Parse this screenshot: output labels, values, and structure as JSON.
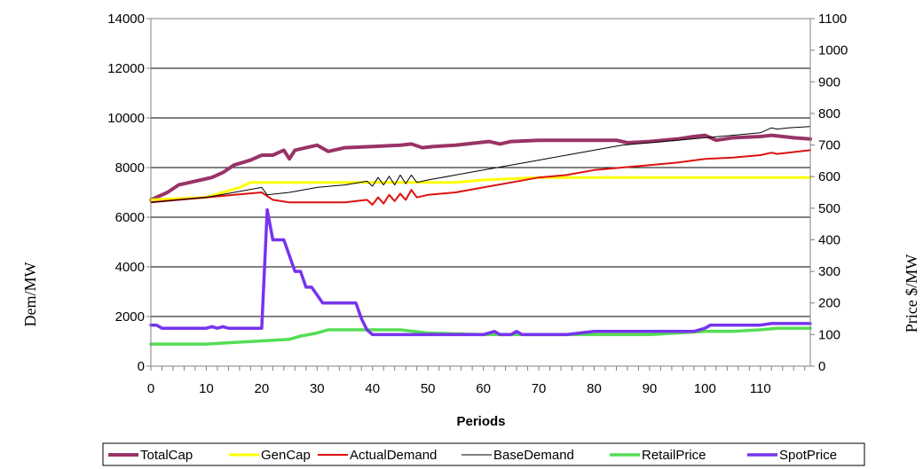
{
  "chart_data": {
    "type": "line",
    "xlabel": "Periods",
    "ylabel_left": "Dem/MW",
    "ylabel_right": "Price $/MW",
    "xlim": [
      0,
      119
    ],
    "ylim_left": [
      0,
      14000
    ],
    "ylim_right": [
      0,
      1100
    ],
    "x_ticks": [
      0,
      10,
      20,
      30,
      40,
      50,
      60,
      70,
      80,
      90,
      100,
      110
    ],
    "y_ticks_left": [
      0,
      2000,
      4000,
      6000,
      8000,
      10000,
      12000,
      14000
    ],
    "y_ticks_right": [
      0,
      100,
      200,
      300,
      400,
      500,
      600,
      700,
      800,
      900,
      1000,
      1100
    ],
    "grid": "horizontal",
    "legend_position": "bottom",
    "series": [
      {
        "name": "TotalCap",
        "axis": "left",
        "color": "#993366",
        "x": [
          0,
          3,
          5,
          7,
          9,
          11,
          13,
          15,
          18,
          20,
          22,
          24,
          25,
          26,
          28,
          30,
          32,
          35,
          40,
          45,
          47,
          49,
          51,
          55,
          59,
          61,
          63,
          65,
          70,
          75,
          80,
          84,
          86,
          90,
          95,
          98,
          100,
          102,
          105,
          110,
          112,
          116,
          119
        ],
        "y": [
          6700,
          7000,
          7300,
          7400,
          7500,
          7600,
          7800,
          8100,
          8300,
          8500,
          8500,
          8700,
          8350,
          8700,
          8800,
          8900,
          8650,
          8800,
          8850,
          8900,
          8950,
          8800,
          8850,
          8900,
          9000,
          9050,
          8950,
          9050,
          9100,
          9100,
          9100,
          9100,
          9000,
          9050,
          9150,
          9250,
          9300,
          9100,
          9200,
          9250,
          9300,
          9200,
          9150
        ]
      },
      {
        "name": "GenCap",
        "axis": "left",
        "color": "#ffff00",
        "x": [
          0,
          10,
          13,
          16,
          18,
          20,
          30,
          40,
          50,
          55,
          60,
          70,
          80,
          90,
          100,
          110,
          119
        ],
        "y": [
          6700,
          6800,
          7000,
          7200,
          7400,
          7400,
          7400,
          7400,
          7400,
          7400,
          7500,
          7600,
          7600,
          7600,
          7600,
          7600,
          7600
        ]
      },
      {
        "name": "ActualDemand",
        "axis": "left",
        "color": "#dd1111",
        "x": [
          0,
          5,
          10,
          15,
          20,
          22,
          25,
          30,
          35,
          39,
          40,
          41,
          42,
          43,
          44,
          45,
          46,
          47,
          48,
          49,
          50,
          55,
          60,
          65,
          70,
          75,
          80,
          85,
          90,
          95,
          100,
          105,
          110,
          112,
          113,
          115,
          119
        ],
        "y": [
          6600,
          6700,
          6800,
          6900,
          7000,
          6700,
          6600,
          6600,
          6600,
          6700,
          6500,
          6800,
          6550,
          6900,
          6650,
          6950,
          6700,
          7100,
          6800,
          6850,
          6900,
          7000,
          7200,
          7400,
          7600,
          7700,
          7900,
          8000,
          8100,
          8200,
          8350,
          8400,
          8500,
          8600,
          8550,
          8600,
          8700
        ]
      },
      {
        "name": "BaseDemand",
        "axis": "left",
        "color": "#000000",
        "x": [
          0,
          5,
          10,
          15,
          20,
          21,
          25,
          30,
          35,
          39,
          40,
          41,
          42,
          43,
          44,
          45,
          46,
          47,
          48,
          49,
          50,
          55,
          60,
          65,
          70,
          75,
          80,
          85,
          90,
          95,
          100,
          105,
          110,
          112,
          113,
          115,
          119
        ],
        "y": [
          6600,
          6700,
          6800,
          7000,
          7200,
          6900,
          7000,
          7200,
          7300,
          7450,
          7250,
          7600,
          7300,
          7650,
          7300,
          7700,
          7350,
          7700,
          7400,
          7450,
          7500,
          7700,
          7900,
          8100,
          8300,
          8500,
          8700,
          8900,
          9000,
          9100,
          9200,
          9300,
          9400,
          9600,
          9550,
          9600,
          9650
        ]
      },
      {
        "name": "RetailPrice",
        "axis": "right",
        "color": "#55dd55",
        "x": [
          0,
          5,
          10,
          15,
          20,
          25,
          27,
          30,
          32,
          35,
          40,
          45,
          50,
          60,
          70,
          80,
          90,
          100,
          105,
          110,
          113,
          119
        ],
        "y": [
          70,
          70,
          70,
          75,
          80,
          85,
          95,
          105,
          115,
          115,
          115,
          115,
          105,
          100,
          100,
          100,
          100,
          110,
          110,
          115,
          120,
          120
        ]
      },
      {
        "name": "SpotPrice",
        "axis": "right",
        "color": "#7733ee",
        "x": [
          0,
          1,
          2,
          5,
          10,
          11,
          12,
          13,
          14,
          15,
          16,
          20,
          21,
          22,
          23,
          24,
          25,
          26,
          27,
          28,
          29,
          30,
          31,
          32,
          33,
          35,
          36,
          37,
          38,
          39,
          40,
          41,
          45,
          50,
          55,
          60,
          62,
          63,
          65,
          66,
          67,
          70,
          75,
          80,
          85,
          90,
          95,
          98,
          100,
          101,
          105,
          110,
          112,
          119
        ],
        "y": [
          130,
          130,
          120,
          120,
          120,
          125,
          120,
          125,
          120,
          120,
          120,
          120,
          495,
          400,
          400,
          400,
          350,
          300,
          300,
          250,
          250,
          225,
          200,
          200,
          200,
          200,
          200,
          200,
          150,
          115,
          100,
          100,
          100,
          100,
          100,
          100,
          110,
          100,
          100,
          110,
          100,
          100,
          100,
          110,
          110,
          110,
          110,
          110,
          120,
          130,
          130,
          130,
          135,
          135
        ]
      }
    ]
  }
}
